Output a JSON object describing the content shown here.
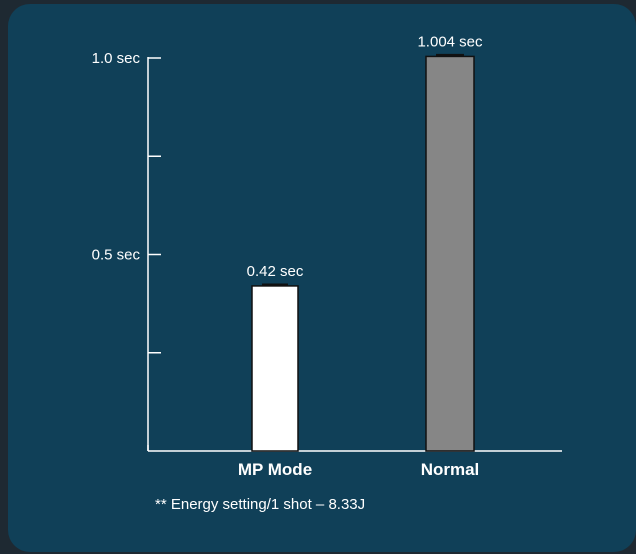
{
  "chart_data": {
    "type": "bar",
    "categories": [
      "MP Mode",
      "Normal"
    ],
    "values": [
      0.42,
      1.004
    ],
    "value_labels": [
      "0.42 sec",
      "1.004 sec"
    ],
    "bar_colors": [
      "#ffffff",
      "#868686"
    ],
    "ylim": [
      0,
      1.0
    ],
    "y_ticks": [
      {
        "value": 1.0,
        "label": "1.0 sec"
      },
      {
        "value": 0.75,
        "label": ""
      },
      {
        "value": 0.5,
        "label": "0.5 sec"
      },
      {
        "value": 0.25,
        "label": ""
      }
    ],
    "grid": false,
    "footnote": "** Energy setting/1 shot – 8.33J"
  },
  "colors": {
    "background": "#1e2932",
    "card": "#104058",
    "axis": "#ffffff",
    "text": "#ffffff"
  }
}
